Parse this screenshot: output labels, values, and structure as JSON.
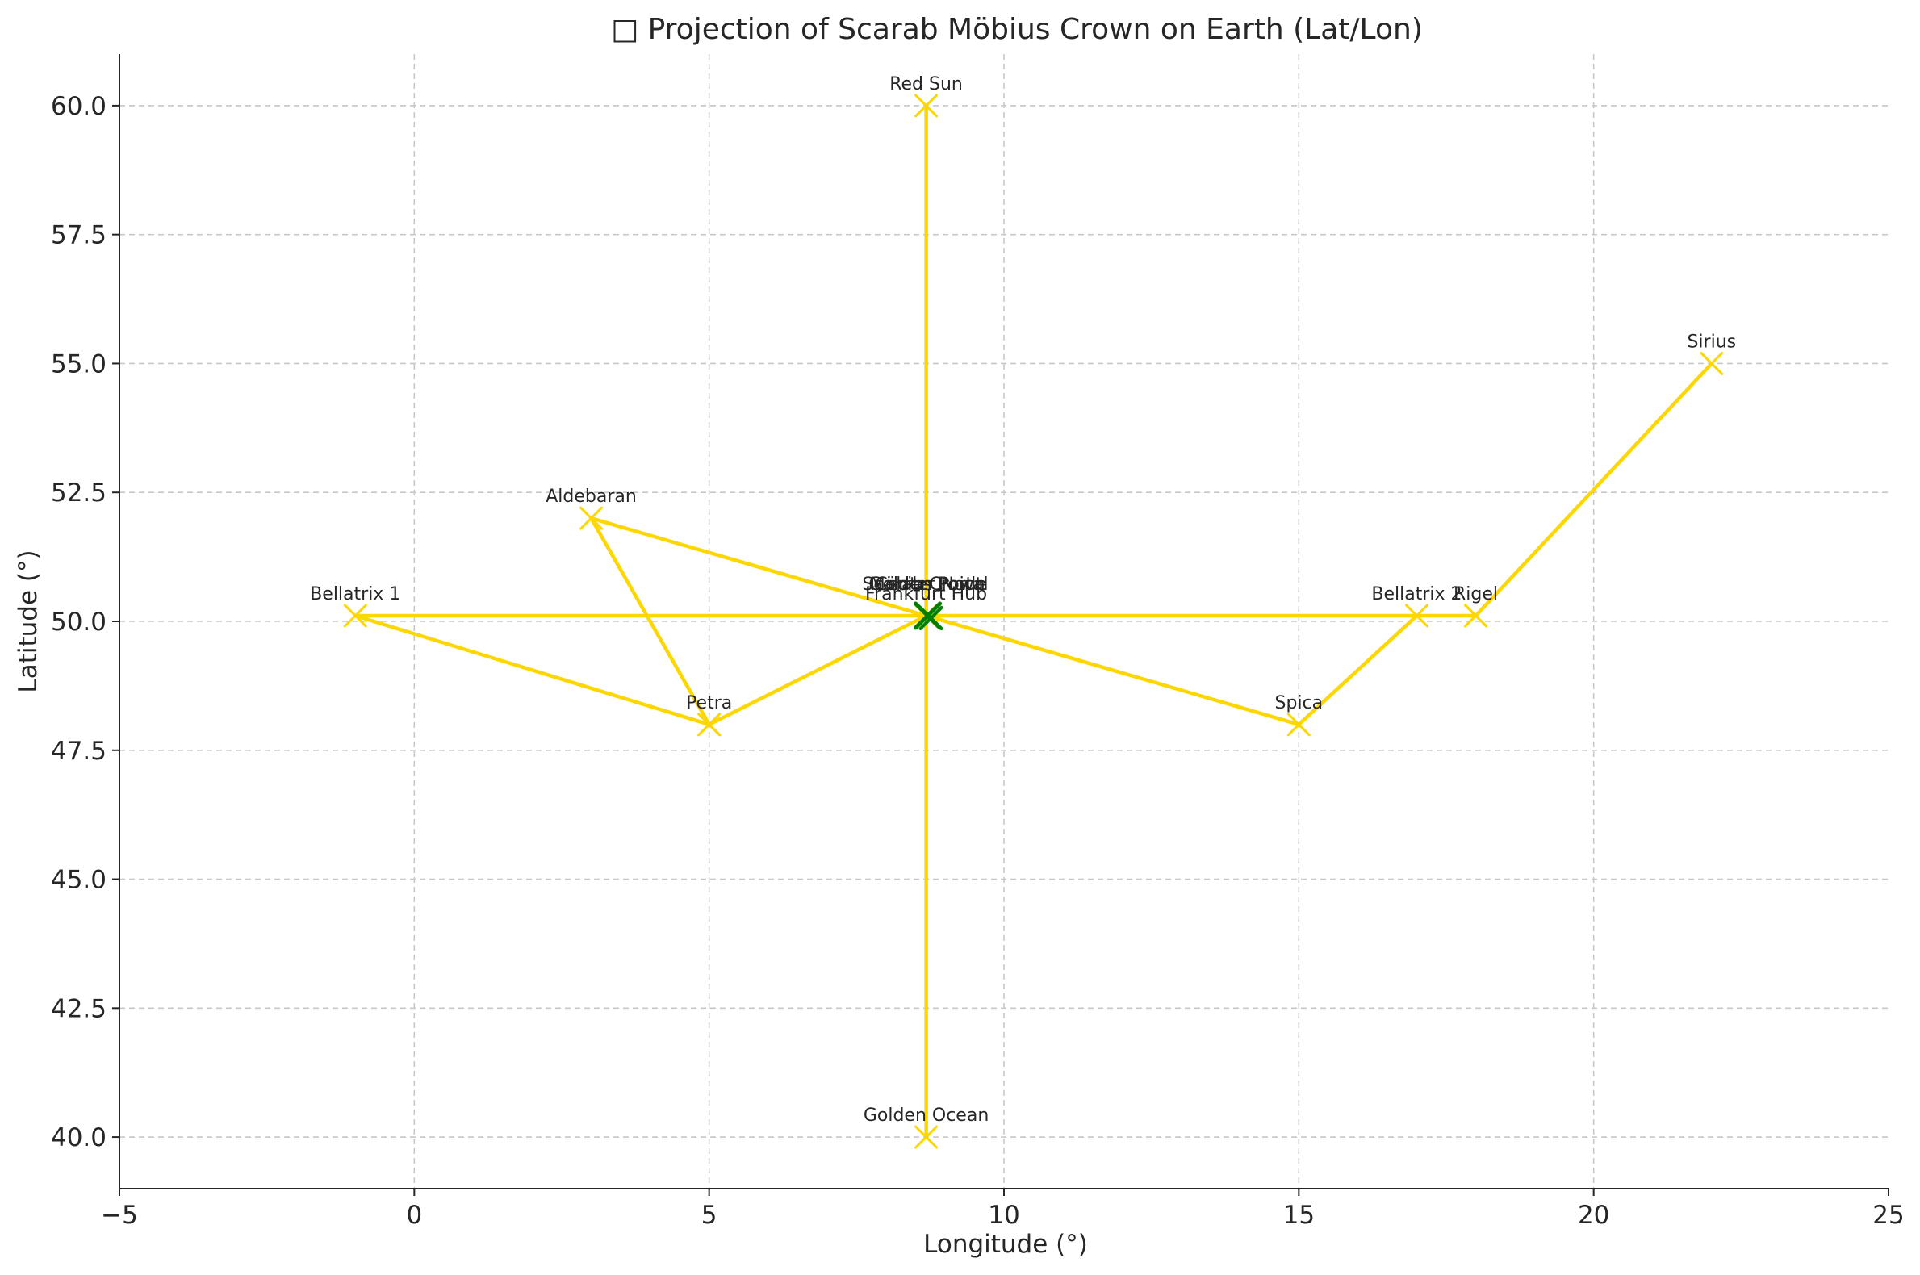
{
  "chart_data": {
    "type": "line",
    "title": "□ Projection of Scarab Möbius Crown on Earth (Lat/Lon)",
    "xlabel": "Longitude (°)",
    "ylabel": "Latitude (°)",
    "xlim": [
      -5,
      25
    ],
    "ylim": [
      39,
      61
    ],
    "xticks": [
      -5,
      0,
      5,
      10,
      15,
      20,
      25
    ],
    "xtick_labels": [
      "−5",
      "0",
      "5",
      "10",
      "15",
      "20",
      "25"
    ],
    "yticks": [
      40.0,
      42.5,
      45.0,
      47.5,
      50.0,
      52.5,
      55.0,
      57.5,
      60.0
    ],
    "ytick_labels": [
      "40.0",
      "42.5",
      "45.0",
      "47.5",
      "50.0",
      "52.5",
      "55.0",
      "57.5",
      "60.0"
    ],
    "grid": true,
    "colors": {
      "path": "#FFD700",
      "center_marker": "#008000",
      "grid": "#c8c8c8",
      "text": "#262626"
    },
    "path": [
      {
        "label": "Red Sun",
        "lon": 8.68,
        "lat": 60.0
      },
      {
        "label": "Golden Ocean",
        "lon": 8.68,
        "lat": 40.0
      },
      {
        "label": "",
        "lon": 8.68,
        "lat": 50.11
      },
      {
        "label": "Aldebaran",
        "lon": 3.0,
        "lat": 52.0
      },
      {
        "label": "Petra",
        "lon": 5.0,
        "lat": 48.0
      },
      {
        "label": "",
        "lon": 8.68,
        "lat": 50.11
      },
      {
        "label": "Spica",
        "lon": 15.0,
        "lat": 48.0
      },
      {
        "label": "Bellatrix 2",
        "lon": 17.0,
        "lat": 50.11
      },
      {
        "label": "Rigel",
        "lon": 18.0,
        "lat": 50.11
      },
      {
        "label": "Sirius",
        "lon": 22.0,
        "lat": 55.0
      },
      {
        "label": "",
        "lon": 18.0,
        "lat": 50.11
      },
      {
        "label": "",
        "lon": 8.68,
        "lat": 50.11
      },
      {
        "label": "Bellatrix 1",
        "lon": -1.0,
        "lat": 50.11
      },
      {
        "label": "",
        "lon": 5.0,
        "lat": 48.0
      }
    ],
    "center": {
      "labels": [
        "Frankfurt Hub",
        "Scarab Crown",
        "Möbius Point",
        "Golden Portal",
        "Center Node"
      ],
      "lon": 8.68,
      "lat": 50.11
    }
  }
}
